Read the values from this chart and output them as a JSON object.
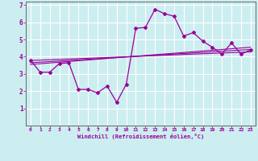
{
  "xlabel": "Windchill (Refroidissement éolien,°C)",
  "xlim": [
    -0.5,
    23.5
  ],
  "ylim": [
    0,
    7.2
  ],
  "xticks": [
    0,
    1,
    2,
    3,
    4,
    5,
    6,
    7,
    8,
    9,
    10,
    11,
    12,
    13,
    14,
    15,
    16,
    17,
    18,
    19,
    20,
    21,
    22,
    23
  ],
  "yticks": [
    1,
    2,
    3,
    4,
    5,
    6,
    7
  ],
  "background_color": "#cceef0",
  "line_color": "#990099",
  "grid_color": "#aadddd",
  "series": {
    "main": {
      "x": [
        0,
        1,
        2,
        3,
        4,
        5,
        6,
        7,
        8,
        9,
        10,
        11,
        12,
        13,
        14,
        15,
        16,
        17,
        18,
        19,
        20,
        21,
        22,
        23
      ],
      "y": [
        3.8,
        3.1,
        3.1,
        3.6,
        3.65,
        2.1,
        2.1,
        1.9,
        2.3,
        1.35,
        2.4,
        5.65,
        5.7,
        6.75,
        6.5,
        6.35,
        5.2,
        5.4,
        4.9,
        4.55,
        4.15,
        4.8,
        4.15,
        4.4
      ]
    },
    "regression1": {
      "x": [
        0,
        23
      ],
      "y": [
        3.55,
        4.55
      ]
    },
    "regression2": {
      "x": [
        0,
        23
      ],
      "y": [
        3.65,
        4.42
      ]
    },
    "regression3": {
      "x": [
        0,
        23
      ],
      "y": [
        3.78,
        4.28
      ]
    }
  }
}
